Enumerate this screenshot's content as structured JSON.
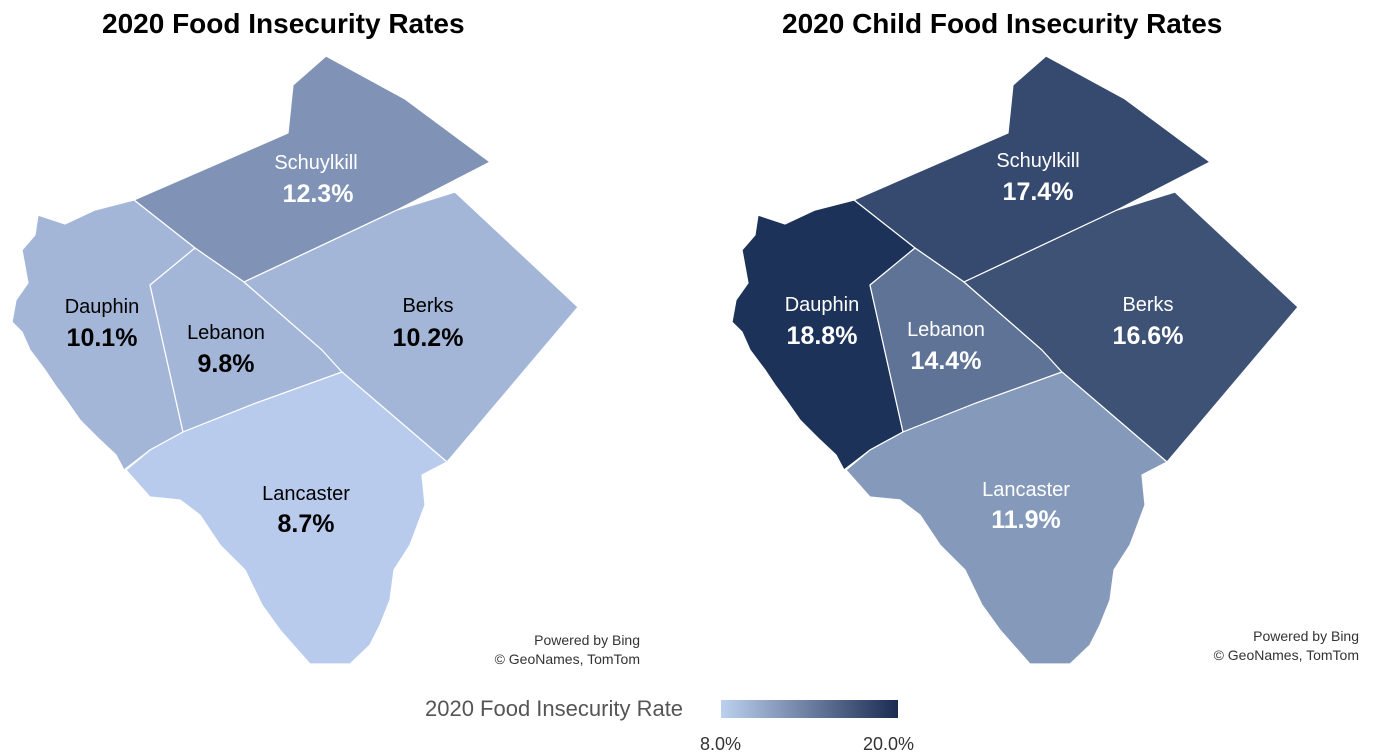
{
  "maps": [
    {
      "title": "2020 Food Insecurity Rates",
      "counties": [
        {
          "name": "Schuylkill",
          "value": "12.3%",
          "color": "#8093b6",
          "label_color": "#ffffff"
        },
        {
          "name": "Dauphin",
          "value": "10.1%",
          "color": "#a3b6d8",
          "label_color": "#000000"
        },
        {
          "name": "Lebanon",
          "value": "9.8%",
          "color": "#a3b6d8",
          "label_color": "#000000"
        },
        {
          "name": "Berks",
          "value": "10.2%",
          "color": "#a3b6d8",
          "label_color": "#000000"
        },
        {
          "name": "Lancaster",
          "value": "8.7%",
          "color": "#b8cbed",
          "label_color": "#000000"
        }
      ],
      "credit": {
        "line1": "Powered by Bing",
        "line2": "© GeoNames, TomTom"
      }
    },
    {
      "title": "2020 Child Food Insecurity Rates",
      "counties": [
        {
          "name": "Schuylkill",
          "value": "17.4%",
          "color": "#354a6e",
          "label_color": "#ffffff"
        },
        {
          "name": "Dauphin",
          "value": "18.8%",
          "color": "#1d3259",
          "label_color": "#ffffff"
        },
        {
          "name": "Lebanon",
          "value": "14.4%",
          "color": "#5f7396",
          "label_color": "#ffffff"
        },
        {
          "name": "Berks",
          "value": "16.6%",
          "color": "#3e5276",
          "label_color": "#ffffff"
        },
        {
          "name": "Lancaster",
          "value": "11.9%",
          "color": "#8599ba",
          "label_color": "#ffffff"
        }
      ],
      "credit": {
        "line1": "Powered by Bing",
        "line2": "© GeoNames, TomTom"
      }
    }
  ],
  "legend": {
    "title": "2020 Food Insecurity Rate",
    "min_label": "8.0%",
    "max_label": "20.0%",
    "color_low": "#bcd0ef",
    "color_high": "#1a2c52"
  }
}
